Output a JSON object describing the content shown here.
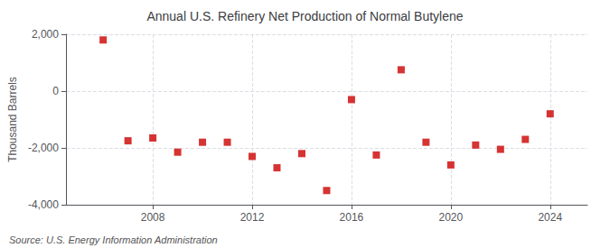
{
  "chart_data": {
    "type": "scatter",
    "title": "Annual U.S. Refinery Net Production of Normal Butylene",
    "ylabel": "Thousand Barrels",
    "annotations": [
      "Source: U.S. Energy Information Administration"
    ],
    "x": [
      2006,
      2007,
      2008,
      2009,
      2010,
      2011,
      2012,
      2013,
      2014,
      2015,
      2016,
      2017,
      2018,
      2019,
      2020,
      2021,
      2022,
      2023,
      2024
    ],
    "values": [
      1800,
      -1750,
      -1650,
      -2150,
      -1800,
      -1800,
      -2300,
      -2700,
      -2200,
      -3500,
      -300,
      -2250,
      750,
      -1800,
      -2600,
      -1900,
      -2050,
      -1700,
      -800
    ],
    "color": "#cc0000",
    "marker": "square",
    "xlim": [
      2004.5,
      2025.5
    ],
    "xticks": [
      2008,
      2012,
      2016,
      2020,
      2024
    ],
    "ylim": [
      -4000,
      2000
    ],
    "yticks": [
      {
        "value": -4000,
        "label": "-4,000"
      },
      {
        "value": -2000,
        "label": "-2,000"
      },
      0,
      {
        "value": 2000,
        "label": "2,000"
      }
    ],
    "grid": true
  }
}
